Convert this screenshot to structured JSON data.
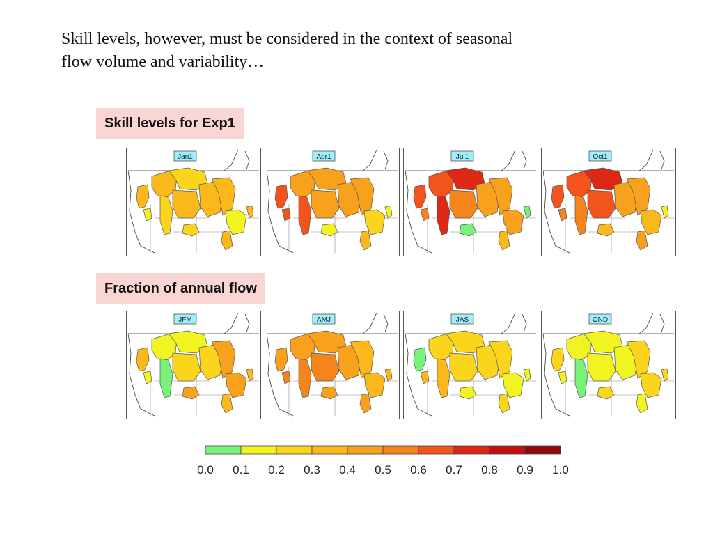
{
  "intro": {
    "line1": "Skill levels, however, must be considered in the context of seasonal",
    "line2": "flow volume and variability…"
  },
  "sections": [
    {
      "id": "skill",
      "label": "Skill levels for Exp1",
      "maps": [
        {
          "title": "Jan1",
          "fills": {
            "west": 0.35,
            "columbia": 0.3,
            "mountain": 0.25,
            "great_basin": 0.15,
            "missouri_n": 0.2,
            "missouri_s": 0.35,
            "central": 0.35,
            "upper_miss": 0.35,
            "lower_miss": 0.15,
            "arkansas": 0.25,
            "rio": 0.3,
            "east": 0.3
          }
        },
        {
          "title": "Apr1",
          "fills": {
            "west": 0.65,
            "columbia": 0.45,
            "mountain": 0.65,
            "great_basin": 0.65,
            "missouri_n": 0.4,
            "missouri_s": 0.45,
            "central": 0.45,
            "upper_miss": 0.4,
            "lower_miss": 0.2,
            "arkansas": 0.15,
            "rio": 0.35,
            "east": 0.15
          }
        },
        {
          "title": "Jul1",
          "fills": {
            "west": 0.6,
            "columbia": 0.65,
            "mountain": 0.7,
            "great_basin": 0.55,
            "missouri_n": 0.75,
            "missouri_s": 0.55,
            "central": 0.45,
            "upper_miss": 0.45,
            "lower_miss": 0.4,
            "arkansas": 0.05,
            "rio": 0.35,
            "east": 0.05
          }
        },
        {
          "title": "Oct1",
          "fills": {
            "west": 0.6,
            "columbia": 0.65,
            "mountain": 0.55,
            "great_basin": 0.5,
            "missouri_n": 0.75,
            "missouri_s": 0.6,
            "central": 0.45,
            "upper_miss": 0.45,
            "lower_miss": 0.3,
            "arkansas": 0.35,
            "rio": 0.4,
            "east": 0.1
          }
        }
      ]
    },
    {
      "id": "fraction",
      "label": "Fraction of annual flow",
      "maps": [
        {
          "title": "JFM",
          "fills": {
            "west": 0.35,
            "columbia": 0.15,
            "mountain": 0.05,
            "great_basin": 0.15,
            "missouri_n": 0.15,
            "missouri_s": 0.2,
            "central": 0.2,
            "upper_miss": 0.45,
            "lower_miss": 0.4,
            "arkansas": 0.4,
            "rio": 0.35,
            "east": 0.35
          }
        },
        {
          "title": "AMJ",
          "fills": {
            "west": 0.45,
            "columbia": 0.45,
            "mountain": 0.55,
            "great_basin": 0.5,
            "missouri_n": 0.45,
            "missouri_s": 0.5,
            "central": 0.45,
            "upper_miss": 0.35,
            "lower_miss": 0.35,
            "arkansas": 0.45,
            "rio": 0.4,
            "east": 0.3
          }
        },
        {
          "title": "JAS",
          "fills": {
            "west": 0.05,
            "columbia": 0.25,
            "mountain": 0.3,
            "great_basin": 0.35,
            "missouri_n": 0.25,
            "missouri_s": 0.25,
            "central": 0.25,
            "upper_miss": 0.2,
            "lower_miss": 0.15,
            "arkansas": 0.15,
            "rio": 0.2,
            "east": 0.15
          }
        },
        {
          "title": "OND",
          "fills": {
            "west": 0.2,
            "columbia": 0.15,
            "mountain": 0.05,
            "great_basin": 0.15,
            "missouri_n": 0.15,
            "missouri_s": 0.15,
            "central": 0.15,
            "upper_miss": 0.2,
            "lower_miss": 0.2,
            "arkansas": 0.2,
            "rio": 0.15,
            "east": 0.2
          }
        }
      ]
    }
  ],
  "legend": {
    "ticks": [
      "0.0",
      "0.1",
      "0.2",
      "0.3",
      "0.4",
      "0.5",
      "0.6",
      "0.7",
      "0.8",
      "0.9",
      "1.0"
    ],
    "colors": [
      "#79f27a",
      "#f1f420",
      "#fbd41c",
      "#fbb81b",
      "#f8a11c",
      "#f5851b",
      "#f3541c",
      "#dd2815",
      "#c4100e",
      "#8f0a08"
    ]
  },
  "colors": {
    "label_bg": "#f9d6d3",
    "map_title_bg": "#9feefc"
  }
}
